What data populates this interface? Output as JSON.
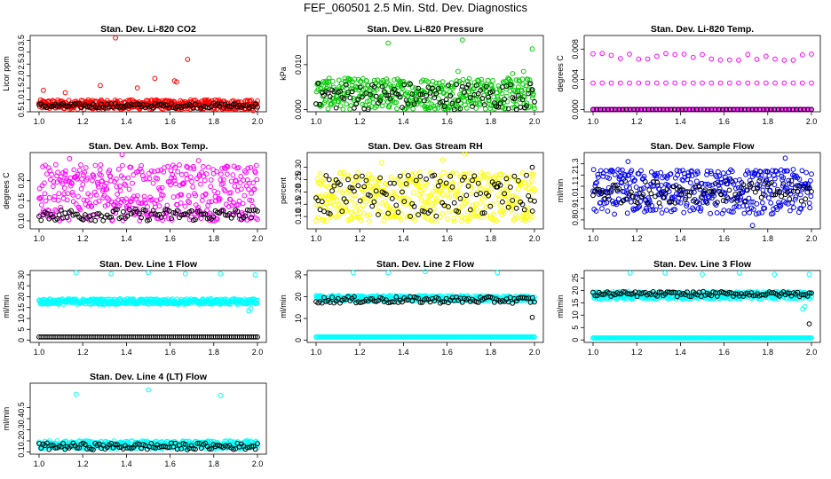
{
  "title": "FEF_060501  2.5 Min. Std. Dev. Diagnostics",
  "chart_data": [
    {
      "type": "scatter",
      "title": "Stan. Dev. Li-820 CO2",
      "ylabel": "Licor ppm",
      "xlim": [
        1.0,
        2.0
      ],
      "ylim": [
        0.5,
        3.7
      ],
      "xticks": [
        "1.0",
        "1.2",
        "1.4",
        "1.6",
        "1.8",
        "2.0"
      ],
      "yticks": [
        [
          "0.5",
          0.5
        ],
        [
          "1.0",
          1.0
        ],
        [
          "1.5",
          1.5
        ],
        [
          "2.0",
          2.0
        ],
        [
          "2.5",
          2.5
        ],
        [
          "3.0",
          3.0
        ],
        [
          "3.5",
          3.5
        ]
      ],
      "series": [
        {
          "color": "#ff0000",
          "band": [
            0.6,
            1.0
          ],
          "count": 420,
          "outliers": [
            [
              1.35,
              3.6
            ],
            [
              1.68,
              2.7
            ],
            [
              1.53,
              1.9
            ],
            [
              1.62,
              1.8
            ],
            [
              1.63,
              1.75
            ],
            [
              1.28,
              1.6
            ],
            [
              1.45,
              1.5
            ],
            [
              1.02,
              1.4
            ],
            [
              1.12,
              1.3
            ],
            [
              1.98,
              0.55
            ]
          ]
        },
        {
          "color": "#000000",
          "band": [
            0.65,
            0.85
          ],
          "count": 110,
          "outliers": []
        }
      ]
    },
    {
      "type": "scatter",
      "title": "Stan. Dev. Li-820 Pressure",
      "ylabel": "kPa",
      "xlim": [
        1.0,
        2.0
      ],
      "ylim": [
        -0.0005,
        0.0165
      ],
      "xticks": [
        "1.0",
        "1.2",
        "1.4",
        "1.6",
        "1.8",
        "2.0"
      ],
      "yticks": [
        [
          "0.000",
          0.0
        ],
        [
          "0.010",
          0.01
        ]
      ],
      "series": [
        {
          "color": "#00cc00",
          "band": [
            0.0,
            0.007
          ],
          "count": 420,
          "outliers": [
            [
              1.33,
              0.0148
            ],
            [
              1.67,
              0.0155
            ],
            [
              1.99,
              0.0135
            ],
            [
              1.65,
              0.0085
            ],
            [
              1.9,
              0.008
            ],
            [
              1.95,
              0.0085
            ]
          ]
        },
        {
          "color": "#000000",
          "band": [
            0.0,
            0.006
          ],
          "count": 110,
          "outliers": []
        }
      ]
    },
    {
      "type": "scatter",
      "title": "Stan. Dev. Li-820 Temp.",
      "ylabel": "degrees C",
      "xlim": [
        1.0,
        2.0
      ],
      "ylim": [
        -0.0003,
        0.0098
      ],
      "xticks": [
        "1.0",
        "1.2",
        "1.4",
        "1.6",
        "1.8",
        "2.0"
      ],
      "yticks": [
        [
          "0.000",
          0.0
        ],
        [
          "0.004",
          0.004
        ],
        [
          "0.008",
          0.008
        ]
      ],
      "series": [
        {
          "color": "#ff00ff",
          "band": [
            0.0,
            0.0
          ],
          "count": 160,
          "outliers": []
        },
        {
          "color": "#ff00ff",
          "band": [
            0.0065,
            0.0075
          ],
          "count": 25,
          "outliers": []
        },
        {
          "color": "#ff00ff",
          "band": [
            0.0035,
            0.0035
          ],
          "count": 25,
          "outliers": []
        },
        {
          "color": "#000000",
          "band": [
            0.0,
            0.0
          ],
          "count": 60,
          "outliers": []
        }
      ]
    },
    {
      "type": "scatter",
      "title": "Stan. Dev. Amb. Box Temp.",
      "ylabel": "degrees C",
      "xlim": [
        1.0,
        2.0
      ],
      "ylim": [
        0.08,
        0.27
      ],
      "xticks": [
        "1.0",
        "1.2",
        "1.4",
        "1.6",
        "1.8",
        "2.0"
      ],
      "yticks": [
        [
          "0.10",
          0.1
        ],
        [
          "0.15",
          0.15
        ],
        [
          "0.20",
          0.2
        ]
      ],
      "series": [
        {
          "color": "#ff00ff",
          "band": [
            0.1,
            0.24
          ],
          "count": 420,
          "outliers": [
            [
              1.38,
              0.265
            ],
            [
              1.14,
              0.255
            ],
            [
              1.73,
              0.25
            ]
          ]
        },
        {
          "color": "#000000",
          "band": [
            0.1,
            0.13
          ],
          "count": 110,
          "outliers": []
        }
      ]
    },
    {
      "type": "scatter",
      "title": "Stan. Dev. Gas Stream RH",
      "ylabel": "percent",
      "xlim": [
        1.0,
        2.0
      ],
      "ylim": [
        0.05,
        0.36
      ],
      "xticks": [
        "1.0",
        "1.2",
        "1.4",
        "1.6",
        "1.8",
        "2.0"
      ],
      "yticks": [
        [
          "0.10",
          0.1
        ],
        [
          "0.15",
          0.15
        ],
        [
          "0.20",
          0.2
        ],
        [
          "0.25",
          0.25
        ],
        [
          "0.30",
          0.3
        ]
      ],
      "series": [
        {
          "color": "#ffff00",
          "band": [
            0.08,
            0.28
          ],
          "count": 420,
          "outliers": [
            [
              1.68,
              0.355
            ],
            [
              1.58,
              0.33
            ],
            [
              1.3,
              0.32
            ]
          ]
        },
        {
          "color": "#000000",
          "band": [
            0.1,
            0.27
          ],
          "count": 110,
          "outliers": [
            [
              1.99,
              0.3
            ],
            [
              1.06,
              0.25
            ],
            [
              1.83,
              0.22
            ]
          ]
        }
      ]
    },
    {
      "type": "scatter",
      "title": "Stan. Dev. Sample Flow",
      "ylabel": "ml/min",
      "xlim": [
        1.0,
        2.0
      ],
      "ylim": [
        0.72,
        1.4
      ],
      "xticks": [
        "1.0",
        "1.2",
        "1.4",
        "1.6",
        "1.8",
        "2.0"
      ],
      "yticks": [
        [
          "0.8",
          0.8
        ],
        [
          "0.9",
          0.9
        ],
        [
          "1.0",
          1.0
        ],
        [
          "1.1",
          1.1
        ],
        [
          "1.2",
          1.2
        ],
        [
          "1.3",
          1.3
        ]
      ],
      "series": [
        {
          "color": "#0000ee",
          "band": [
            0.85,
            1.25
          ],
          "count": 420,
          "outliers": [
            [
              1.88,
              1.35
            ],
            [
              1.73,
              0.75
            ],
            [
              1.16,
              1.32
            ]
          ]
        },
        {
          "color": "#000000",
          "band": [
            0.95,
            1.15
          ],
          "count": 110,
          "outliers": []
        }
      ]
    },
    {
      "type": "scatter",
      "title": "Stan. Dev. Line 1 Flow",
      "ylabel": "ml/min",
      "xlim": [
        1.0,
        2.0
      ],
      "ylim": [
        -1,
        32
      ],
      "xticks": [
        "1.0",
        "1.2",
        "1.4",
        "1.6",
        "1.8",
        "2.0"
      ],
      "yticks": [
        [
          "0",
          0
        ],
        [
          "5",
          5
        ],
        [
          "10",
          10
        ],
        [
          "15",
          15
        ],
        [
          "20",
          20
        ],
        [
          "25",
          25
        ],
        [
          "30",
          30
        ]
      ],
      "series": [
        {
          "color": "#00ffff",
          "band": [
            16.5,
            19
          ],
          "count": 420,
          "outliers": [
            [
              1.17,
              31
            ],
            [
              1.33,
              30.5
            ],
            [
              1.5,
              31
            ],
            [
              1.67,
              30.5
            ],
            [
              1.83,
              30.5
            ],
            [
              1.99,
              30
            ],
            [
              1.96,
              13.5
            ],
            [
              1.97,
              14.5
            ]
          ]
        },
        {
          "color": "#000000",
          "band": [
            1.5,
            1.5
          ],
          "count": 110,
          "outliers": []
        }
      ]
    },
    {
      "type": "scatter",
      "title": "Stan. Dev. Line 2 Flow",
      "ylabel": "ml/min",
      "xlim": [
        1.0,
        2.0
      ],
      "ylim": [
        -1,
        32
      ],
      "xticks": [
        "1.0",
        "1.2",
        "1.4",
        "1.6",
        "1.8",
        "2.0"
      ],
      "yticks": [
        [
          "0",
          0
        ],
        [
          "10",
          10
        ],
        [
          "20",
          20
        ],
        [
          "30",
          30
        ]
      ],
      "series": [
        {
          "color": "#00ffff",
          "band": [
            18,
            20.5
          ],
          "count": 420,
          "outliers": [
            [
              1.17,
              31
            ],
            [
              1.33,
              31
            ],
            [
              1.5,
              31.5
            ],
            [
              1.83,
              31
            ]
          ]
        },
        {
          "color": "#00ffff",
          "band": [
            1.5,
            1.5
          ],
          "count": 220,
          "outliers": []
        },
        {
          "color": "#000000",
          "band": [
            17,
            20
          ],
          "count": 110,
          "outliers": [
            [
              1.99,
              10.5
            ]
          ]
        }
      ]
    },
    {
      "type": "scatter",
      "title": "Stan. Dev. Line 3 Flow",
      "ylabel": "ml/min",
      "xlim": [
        1.0,
        2.0
      ],
      "ylim": [
        -1,
        28
      ],
      "xticks": [
        "1.0",
        "1.2",
        "1.4",
        "1.6",
        "1.8",
        "2.0"
      ],
      "yticks": [
        [
          "0",
          0
        ],
        [
          "5",
          5
        ],
        [
          "10",
          10
        ],
        [
          "15",
          15
        ],
        [
          "20",
          20
        ],
        [
          "25",
          25
        ]
      ],
      "series": [
        {
          "color": "#00ffff",
          "band": [
            16.5,
            19.5
          ],
          "count": 420,
          "outliers": [
            [
              1.17,
              27
            ],
            [
              1.33,
              27
            ],
            [
              1.5,
              26.5
            ],
            [
              1.67,
              27
            ],
            [
              1.83,
              26.5
            ],
            [
              1.99,
              26.5
            ],
            [
              1.96,
              12.5
            ],
            [
              1.97,
              13.5
            ]
          ]
        },
        {
          "color": "#00ffff",
          "band": [
            0.8,
            0.8
          ],
          "count": 220,
          "outliers": []
        },
        {
          "color": "#000000",
          "band": [
            17.5,
            19.5
          ],
          "count": 110,
          "outliers": [
            [
              1.99,
              6.5
            ]
          ]
        }
      ]
    },
    {
      "type": "scatter",
      "title": "Stan. Dev. Line 4 (LT) Flow",
      "ylabel": "ml/min",
      "xlim": [
        1.0,
        2.0
      ],
      "ylim": [
        0.08,
        0.72
      ],
      "xticks": [
        "1.0",
        "1.2",
        "1.4",
        "1.6",
        "1.8",
        "2.0"
      ],
      "yticks": [
        [
          "0.1",
          0.1
        ],
        [
          "0.2",
          0.2
        ],
        [
          "0.3",
          0.3
        ],
        [
          "0.4",
          0.4
        ],
        [
          "0.5",
          0.5
        ]
      ],
      "series": [
        {
          "color": "#00ffff",
          "band": [
            0.13,
            0.2
          ],
          "count": 420,
          "outliers": [
            [
              1.17,
              0.62
            ],
            [
              1.5,
              0.66
            ],
            [
              1.83,
              0.61
            ]
          ]
        },
        {
          "color": "#000000",
          "band": [
            0.12,
            0.18
          ],
          "count": 110,
          "outliers": []
        }
      ]
    }
  ]
}
